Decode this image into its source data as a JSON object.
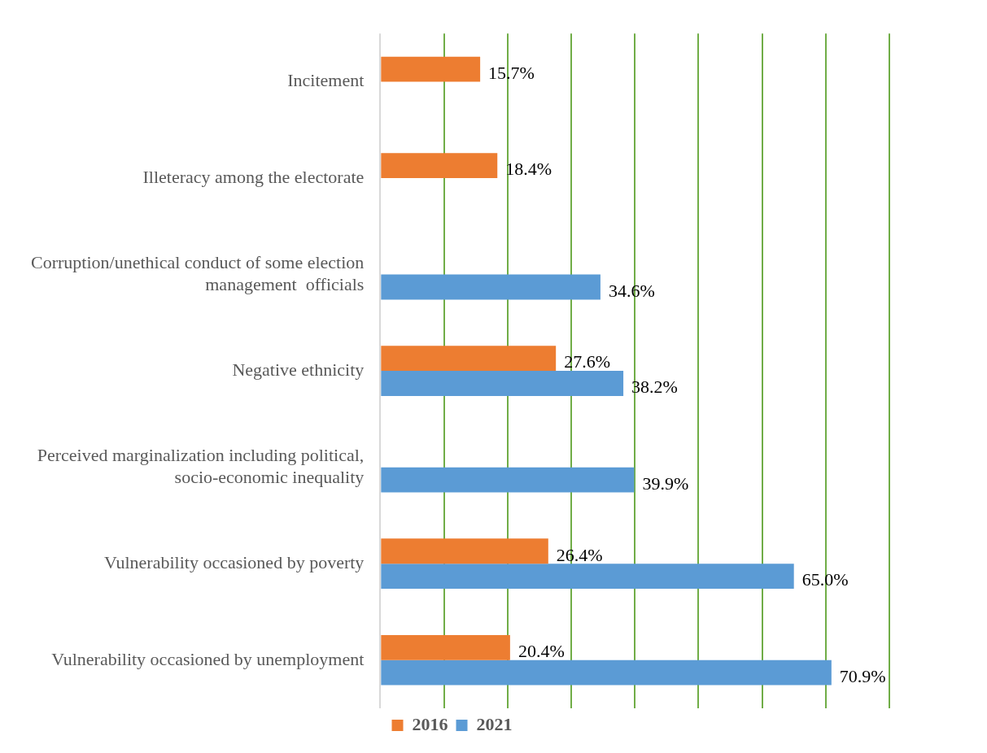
{
  "chart_data": {
    "type": "bar",
    "orientation": "horizontal",
    "categories": [
      "Incitement",
      "Illeteracy among the electorate",
      "Corruption/unethical conduct of some election management  officials",
      "Negative ethnicity",
      "Perceived marginalization including political, socio-economic inequality",
      "Vulnerability occasioned by poverty",
      "Vulnerability occasioned by unemployment"
    ],
    "series": [
      {
        "name": "2016",
        "color": "#ed7d31",
        "values": [
          15.7,
          18.4,
          null,
          27.6,
          null,
          26.4,
          20.4
        ],
        "value_labels": [
          "15.7%",
          "18.4%",
          null,
          "27.6%",
          null,
          "26.4%",
          "20.4%"
        ]
      },
      {
        "name": "2021",
        "color": "#5b9bd5",
        "values": [
          null,
          null,
          34.6,
          38.2,
          39.9,
          65.0,
          70.9
        ],
        "value_labels": [
          null,
          null,
          "34.6%",
          "38.2%",
          "39.9%",
          "65.0%",
          "70.9%"
        ]
      }
    ],
    "xlim": [
      0,
      80
    ],
    "xticks": [
      {
        "value": 0,
        "label": null
      },
      {
        "value": 10,
        "label": null
      },
      {
        "value": 20,
        "label": null
      },
      {
        "value": 30,
        "label": null
      },
      {
        "value": 40,
        "label": null
      },
      {
        "value": 50,
        "label": null
      },
      {
        "value": 60,
        "label": null
      },
      {
        "value": 70,
        "label": null
      },
      {
        "value": 80,
        "label": null
      }
    ],
    "tick_labels": "y",
    "grid": "x",
    "legend": "bottom"
  }
}
